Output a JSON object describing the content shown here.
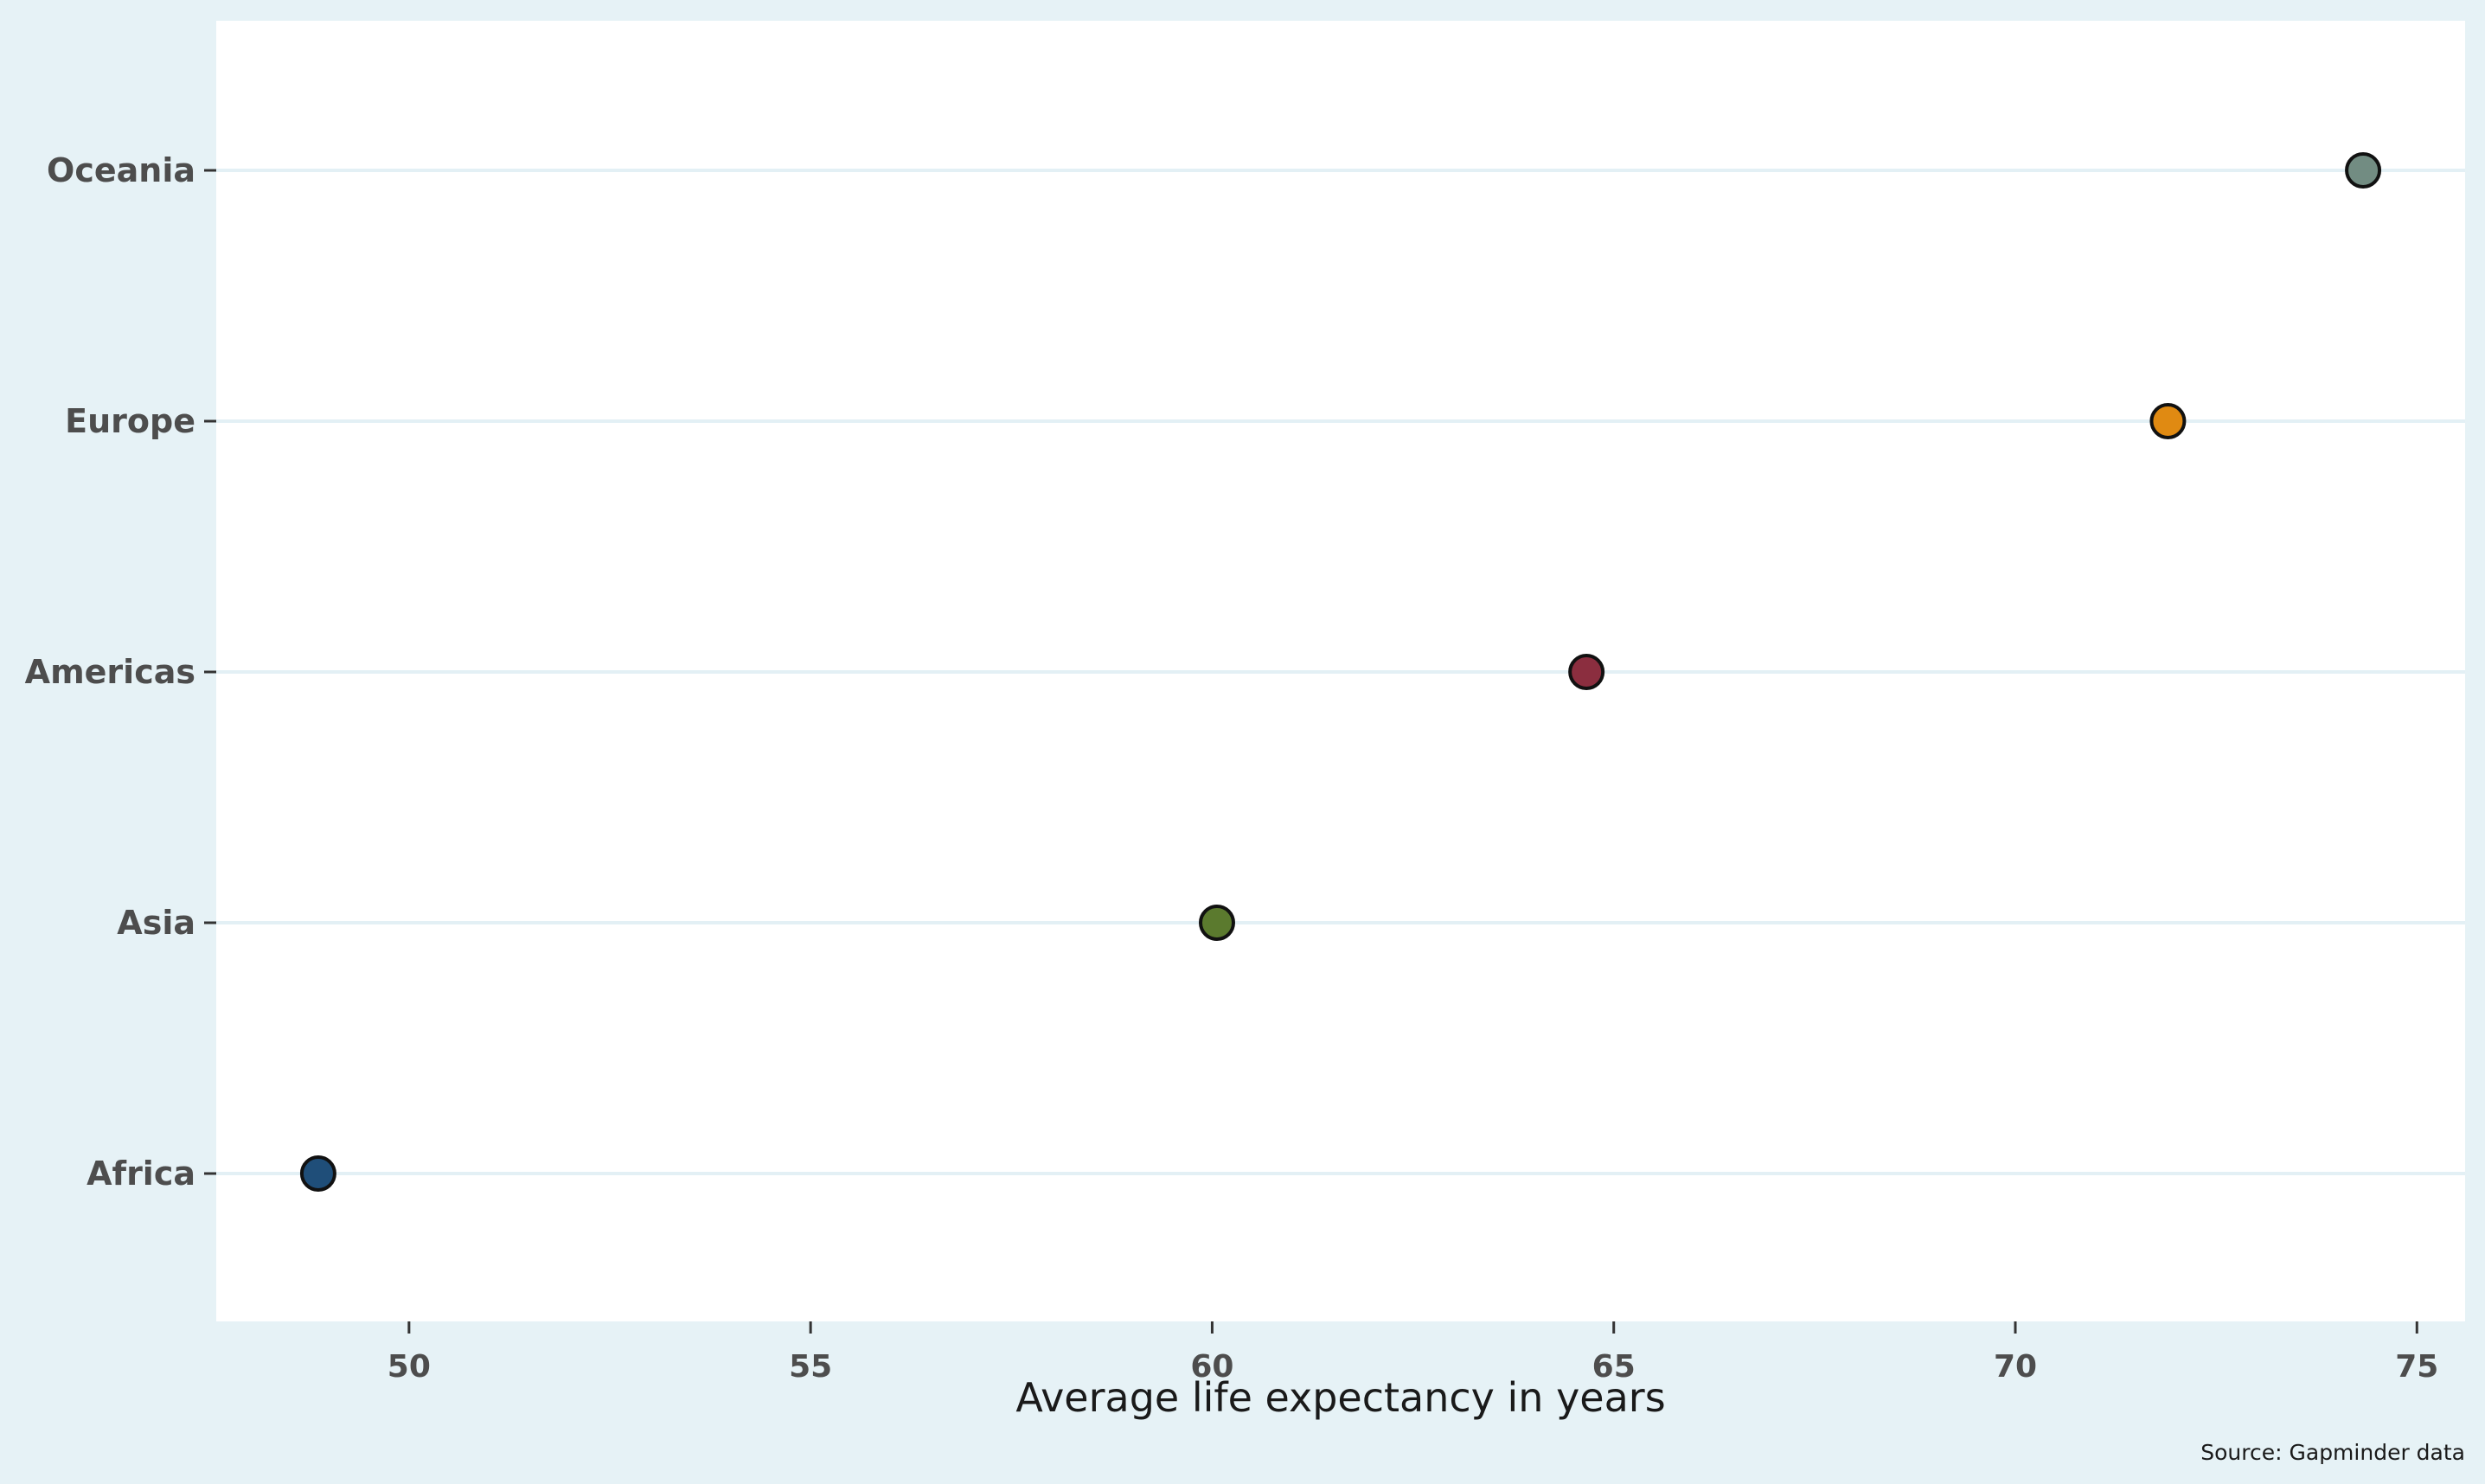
{
  "chart_data": {
    "type": "scatter",
    "categories": [
      "Africa",
      "Asia",
      "Americas",
      "Europe",
      "Oceania"
    ],
    "values": [
      48.87,
      60.06,
      64.66,
      71.9,
      74.33
    ],
    "colors": [
      "#1f4e79",
      "#5b7a2e",
      "#8b2e3f",
      "#e08a12",
      "#728c82"
    ],
    "xlabel": "Average life expectancy in years",
    "ylabel": "",
    "xlim": [
      47.6,
      75.6
    ],
    "xticks": [
      50,
      55,
      60,
      65,
      70,
      75
    ],
    "grid": "horizontal",
    "caption": "Source: Gapminder data"
  }
}
